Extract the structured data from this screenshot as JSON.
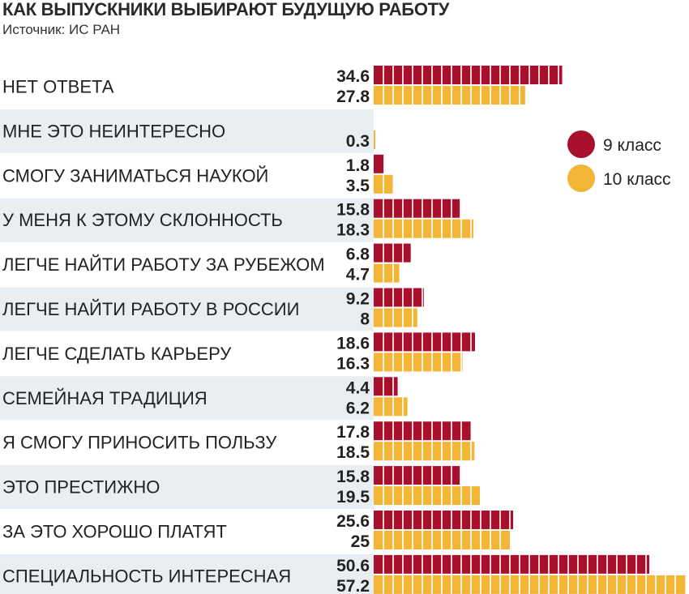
{
  "chart_data": {
    "type": "bar",
    "orientation": "horizontal",
    "title": "КАК ВЫПУСКНИКИ ВЫБИРАЮТ БУДУЩУЮ РАБОТУ",
    "source": "Источник: ИС РАН",
    "categories": [
      "НЕТ ОТВЕТА",
      "МНЕ ЭТО НЕИНТЕРЕСНО",
      "СМОГУ ЗАНИМАТЬСЯ НАУКОЙ",
      "У МЕНЯ К ЭТОМУ СКЛОННОСТЬ",
      "ЛЕГЧЕ НАЙТИ РАБОТУ ЗА РУБЕЖОМ",
      "ЛЕГЧЕ НАЙТИ РАБОТУ В РОССИИ",
      "ЛЕГЧЕ СДЕЛАТЬ КАРЬЕРУ",
      "СЕМЕЙНАЯ ТРАДИЦИЯ",
      "Я СМОГУ ПРИНОСИТЬ ПОЛЬЗУ",
      "ЭТО ПРЕСТИЖНО",
      "ЗА ЭТО ХОРОШО ПЛАТЯТ",
      "СПЕЦИАЛЬНОСТЬ ИНТЕРЕСНАЯ"
    ],
    "series": [
      {
        "name": "9 класс",
        "color": "#a8102e",
        "values": [
          34.6,
          null,
          1.8,
          15.8,
          6.8,
          9.2,
          18.6,
          4.4,
          17.8,
          15.8,
          25.6,
          50.6
        ]
      },
      {
        "name": "10 класс",
        "color": "#f2b535",
        "values": [
          27.8,
          0.3,
          3.5,
          18.3,
          4.7,
          8,
          16.3,
          6.2,
          18.5,
          19.5,
          25,
          57.2
        ]
      }
    ],
    "value_labels": [
      [
        "34.6",
        "27.8"
      ],
      [
        "",
        "0.3"
      ],
      [
        "1.8",
        "3.5"
      ],
      [
        "15.8",
        "18.3"
      ],
      [
        "6.8",
        "4.7"
      ],
      [
        "9.2",
        "8"
      ],
      [
        "18.6",
        "16.3"
      ],
      [
        "4.4",
        "6.2"
      ],
      [
        "17.8",
        "18.5"
      ],
      [
        "15.8",
        "19.5"
      ],
      [
        "25.6",
        "25"
      ],
      [
        "50.6",
        "57.2"
      ]
    ],
    "xlim": [
      0,
      58
    ],
    "grid": false,
    "legend_position": "top-right",
    "row_stripes_color": "#e8eef1",
    "segment_separator_color": "#ffffff"
  }
}
